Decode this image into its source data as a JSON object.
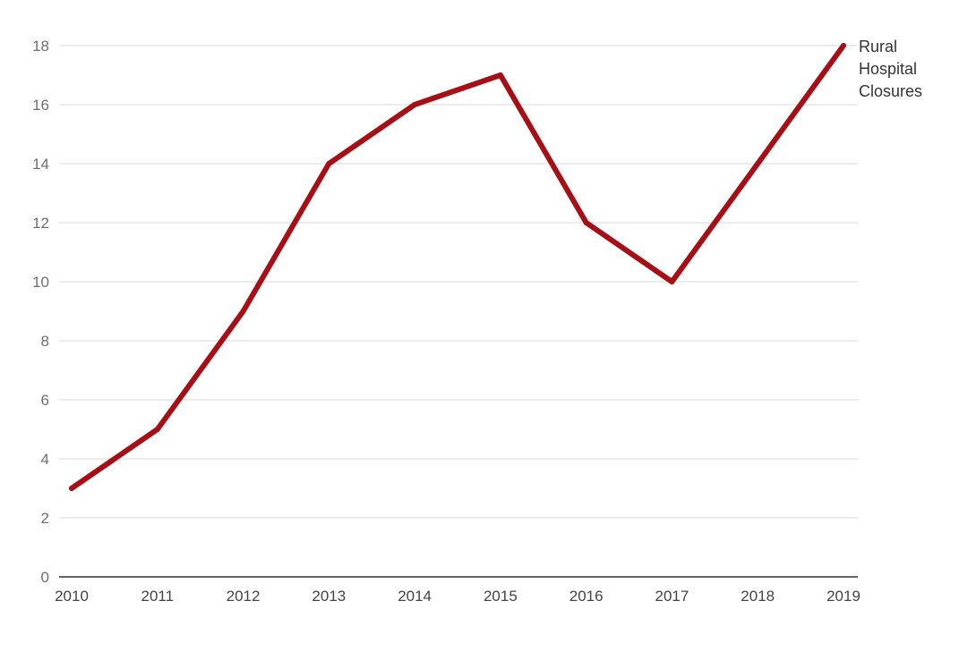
{
  "chart_data": {
    "type": "line",
    "title": "",
    "xlabel": "",
    "ylabel": "",
    "x": [
      "2010",
      "2011",
      "2012",
      "2013",
      "2014",
      "2015",
      "2016",
      "2017",
      "2018",
      "2019"
    ],
    "series": [
      {
        "name": "Rural Hospital Closures",
        "label_lines": [
          "Rural",
          "Hospital",
          "Closures"
        ],
        "values": [
          3,
          5,
          9,
          14,
          16,
          17,
          12,
          10,
          14,
          18
        ],
        "color": "#a50f15"
      }
    ],
    "ylim": [
      0,
      18
    ],
    "yticks": [
      0,
      2,
      4,
      6,
      8,
      10,
      12,
      14,
      16,
      18
    ],
    "grid": true,
    "legend": "inline-end-label"
  },
  "colors": {
    "line": "#a50f15",
    "grid": "#d9d9d9",
    "axis": "#333333",
    "tick_text": "#6f6f6f"
  }
}
